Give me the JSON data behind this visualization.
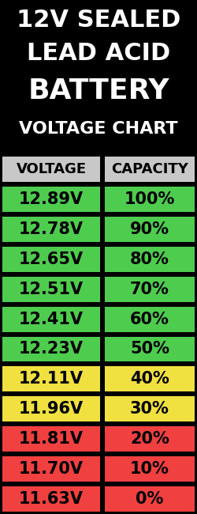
{
  "title_lines": [
    "12V SEALED",
    "LEAD ACID",
    "BATTERY",
    "VOLTAGE CHART"
  ],
  "header": [
    "VOLTAGE",
    "CAPACITY"
  ],
  "rows": [
    {
      "voltage": "12.89V",
      "capacity": "100%",
      "color": "#4ecc4e"
    },
    {
      "voltage": "12.78V",
      "capacity": "90%",
      "color": "#4ecc4e"
    },
    {
      "voltage": "12.65V",
      "capacity": "80%",
      "color": "#4ecc4e"
    },
    {
      "voltage": "12.51V",
      "capacity": "70%",
      "color": "#4ecc4e"
    },
    {
      "voltage": "12.41V",
      "capacity": "60%",
      "color": "#4ecc4e"
    },
    {
      "voltage": "12.23V",
      "capacity": "50%",
      "color": "#4ecc4e"
    },
    {
      "voltage": "12.11V",
      "capacity": "40%",
      "color": "#f0e040"
    },
    {
      "voltage": "11.96V",
      "capacity": "30%",
      "color": "#f0e040"
    },
    {
      "voltage": "11.81V",
      "capacity": "20%",
      "color": "#f04040"
    },
    {
      "voltage": "11.70V",
      "capacity": "10%",
      "color": "#f04040"
    },
    {
      "voltage": "11.63V",
      "capacity": "0%",
      "color": "#f04040"
    }
  ],
  "bg_color": "#000000",
  "header_bg": "#c8c8c8",
  "header_text_color": "#000000",
  "title_text_color": "#ffffff",
  "cell_text_color": "#000000",
  "title_fontsize": 22,
  "battery_fontsize": 26,
  "subtitle_fontsize": 16,
  "header_fontsize": 13,
  "cell_fontsize": 15
}
